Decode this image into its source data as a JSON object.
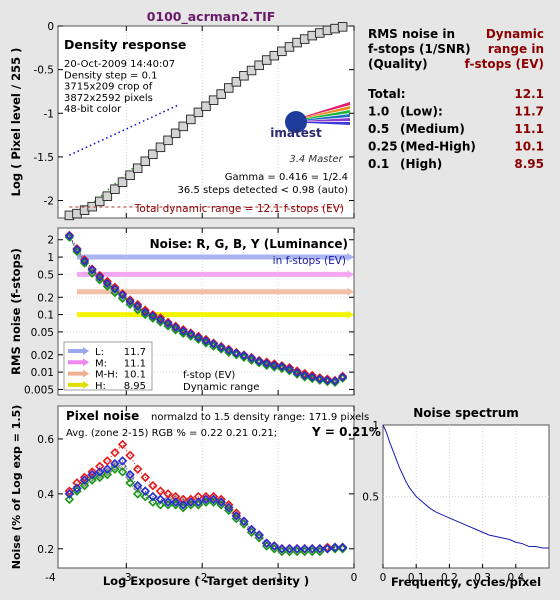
{
  "title": "0100_acrman2.TIF",
  "colors": {
    "title": "#6a1a6a",
    "dark_red": "#8b0000",
    "lum": "#1f2a9f",
    "red": "#e61919",
    "green": "#199619",
    "blue": "#2a2ad2",
    "gray": "#9a9a9a"
  },
  "rms_table": {
    "header_left": [
      "RMS noise in",
      "f-stops (1/SNR)",
      "(Quality)"
    ],
    "header_right": [
      "Dynamic",
      "range in",
      "f-stops (EV)"
    ],
    "rows": [
      {
        "label": "Total:",
        "quality": "",
        "value": "12.1"
      },
      {
        "label": "1.0",
        "quality": "(Low):",
        "value": "11.7"
      },
      {
        "label": "0.5",
        "quality": "(Medium)",
        "value": "11.1"
      },
      {
        "label": "0.25",
        "quality": "(Med-High)",
        "value": "10.1"
      },
      {
        "label": "0.1",
        "quality": "(High)",
        "value": "8.95"
      }
    ]
  },
  "chart_data": [
    {
      "type": "line",
      "name": "density-response",
      "title": "Density response",
      "info_lines": [
        "20-Oct-2009 14:40:07",
        "Density step = 0.1",
        "3715x209 crop of",
        "3872x2592 pixels",
        "48-bit color"
      ],
      "logo_text": "imatest",
      "logo_sub": "3.4  Master",
      "gamma_text": "Gamma = 0.416 = 1/2.4",
      "steps_text": "36.5 steps detected < 0.98 (auto)",
      "dr_text": "Total dynamic range = 12.1 f-stops (EV)",
      "ylabel": "Log ( Pixel level / 255 )",
      "xlim": [
        -3.9,
        0
      ],
      "ylim": [
        -2.2,
        0
      ],
      "yticks": [
        0,
        -0.5,
        -1,
        -1.5,
        -2
      ],
      "ytick_labels": [
        "0",
        "-0.5",
        "-1",
        "-1.5",
        "-2"
      ],
      "x": [
        -3.75,
        -3.65,
        -3.55,
        -3.45,
        -3.35,
        -3.25,
        -3.15,
        -3.05,
        -2.95,
        -2.85,
        -2.75,
        -2.65,
        -2.55,
        -2.45,
        -2.35,
        -2.25,
        -2.15,
        -2.05,
        -1.95,
        -1.85,
        -1.75,
        -1.65,
        -1.55,
        -1.45,
        -1.35,
        -1.25,
        -1.15,
        -1.05,
        -0.95,
        -0.85,
        -0.75,
        -0.65,
        -0.55,
        -0.45,
        -0.35,
        -0.25,
        -0.15
      ],
      "y": [
        -2.17,
        -2.15,
        -2.11,
        -2.07,
        -2.01,
        -1.95,
        -1.87,
        -1.79,
        -1.71,
        -1.63,
        -1.55,
        -1.47,
        -1.39,
        -1.31,
        -1.23,
        -1.15,
        -1.07,
        -0.99,
        -0.92,
        -0.85,
        -0.78,
        -0.71,
        -0.64,
        -0.57,
        -0.51,
        -0.45,
        -0.39,
        -0.34,
        -0.29,
        -0.24,
        -0.19,
        -0.15,
        -0.11,
        -0.08,
        -0.05,
        -0.03,
        -0.01
      ],
      "fit_line": {
        "x": [
          -3.75,
          -2.3
        ],
        "y": [
          -1.48,
          -0.9
        ]
      },
      "green_line": {
        "x": [
          -3.6,
          -2.9
        ],
        "y": [
          -2.15,
          -1.62
        ]
      }
    },
    {
      "type": "line",
      "name": "rms-noise",
      "title": "Noise: R, G, B, Y (Luminance)",
      "subtitle": "in f-stops (EV)",
      "ylabel": "RMS noise (f-stops)",
      "ylog": true,
      "xlim": [
        -3.9,
        0
      ],
      "ylim": [
        0.004,
        3.2
      ],
      "yticks": [
        2,
        1,
        0.5,
        0.2,
        0.1,
        0.05,
        0.02,
        0.01,
        0.005
      ],
      "ytick_labels": [
        "2",
        "1",
        "0.5",
        "0.2",
        "0.1",
        "0.05",
        "0.02",
        "0.01",
        "0.005"
      ],
      "dr_bars": [
        {
          "value": 1.0,
          "x_start": -3.65,
          "x_end": -0.05,
          "color": "#aab4ee"
        },
        {
          "value": 0.5,
          "x_start": -3.65,
          "x_end": -0.05,
          "color": "#f4a8f4"
        },
        {
          "value": 0.25,
          "x_start": -3.65,
          "x_end": -0.05,
          "color": "#f2c0a8"
        },
        {
          "value": 0.1,
          "x_start": -3.65,
          "x_end": -0.05,
          "color": "#f4f400"
        }
      ],
      "legend": [
        {
          "label": "L:",
          "value": "11.7",
          "color": "#9aa6ee"
        },
        {
          "label": "M:",
          "value": "11.1",
          "color": "#ee88ee"
        },
        {
          "label": "M-H:",
          "value": "10.1",
          "color": "#f0b090"
        },
        {
          "label": "H:",
          "value": "8.95",
          "color": "#e0e000"
        }
      ],
      "legend_notes": [
        "f-stop (EV)",
        "Dynamic range"
      ],
      "x": [
        -3.75,
        -3.65,
        -3.55,
        -3.45,
        -3.35,
        -3.25,
        -3.15,
        -3.05,
        -2.95,
        -2.85,
        -2.75,
        -2.65,
        -2.55,
        -2.45,
        -2.35,
        -2.25,
        -2.15,
        -2.05,
        -1.95,
        -1.85,
        -1.75,
        -1.65,
        -1.55,
        -1.45,
        -1.35,
        -1.25,
        -1.15,
        -1.05,
        -0.95,
        -0.85,
        -0.75,
        -0.65,
        -0.55,
        -0.45,
        -0.35,
        -0.25,
        -0.15
      ],
      "series": [
        {
          "color": "#9a9a9a",
          "values": [
            2.3,
            1.3,
            0.8,
            0.55,
            0.42,
            0.33,
            0.26,
            0.2,
            0.16,
            0.13,
            0.105,
            0.09,
            0.078,
            0.066,
            0.057,
            0.05,
            0.044,
            0.039,
            0.034,
            0.03,
            0.026,
            0.023,
            0.021,
            0.019,
            0.017,
            0.015,
            0.014,
            0.013,
            0.012,
            0.011,
            0.0095,
            0.0085,
            0.008,
            0.0075,
            0.007,
            0.0068,
            0.008
          ]
        },
        {
          "color": "#e61919",
          "values": [
            2.4,
            1.4,
            0.9,
            0.62,
            0.48,
            0.38,
            0.3,
            0.23,
            0.18,
            0.15,
            0.12,
            0.1,
            0.088,
            0.074,
            0.063,
            0.055,
            0.048,
            0.042,
            0.037,
            0.032,
            0.028,
            0.025,
            0.022,
            0.02,
            0.018,
            0.016,
            0.015,
            0.014,
            0.013,
            0.012,
            0.0105,
            0.0095,
            0.0088,
            0.008,
            0.0076,
            0.0072,
            0.0085
          ]
        },
        {
          "color": "#199619",
          "values": [
            2.2,
            1.25,
            0.78,
            0.52,
            0.4,
            0.31,
            0.24,
            0.19,
            0.15,
            0.12,
            0.1,
            0.086,
            0.074,
            0.063,
            0.054,
            0.047,
            0.042,
            0.037,
            0.032,
            0.028,
            0.025,
            0.022,
            0.02,
            0.018,
            0.016,
            0.0145,
            0.013,
            0.0122,
            0.0115,
            0.0105,
            0.0092,
            0.0082,
            0.0077,
            0.0072,
            0.0068,
            0.0066,
            0.0078
          ]
        },
        {
          "color": "#2a2ad2",
          "values": [
            2.35,
            1.35,
            0.85,
            0.6,
            0.45,
            0.35,
            0.28,
            0.22,
            0.17,
            0.14,
            0.11,
            0.095,
            0.082,
            0.07,
            0.06,
            0.052,
            0.046,
            0.04,
            0.035,
            0.031,
            0.027,
            0.024,
            0.0215,
            0.0195,
            0.0175,
            0.0155,
            0.0142,
            0.0132,
            0.0125,
            0.0112,
            0.0098,
            0.0088,
            0.0082,
            0.0076,
            0.0072,
            0.007,
            0.0082
          ]
        }
      ]
    },
    {
      "type": "line",
      "name": "pixel-noise",
      "title": "Pixel noise",
      "note": "normalzd to 1.5 density range: 171.9 pixels",
      "avg_text": "Avg. (zone 2-15) RGB % = 0.22  0.21  0.21;",
      "y_text": "Y = 0.21%",
      "xlabel": "Log Exposure ( -Target density )",
      "ylabel": "Noise (% of Log exp = 1.5)",
      "xlim": [
        -3.9,
        0
      ],
      "ylim": [
        0.13,
        0.72
      ],
      "xticks": [
        -4,
        -3,
        -2,
        -1,
        0
      ],
      "xtick_labels": [
        "-4",
        "-3",
        "-2",
        "-1",
        "0"
      ],
      "yticks": [
        0.2,
        0.4,
        0.6
      ],
      "ytick_labels": [
        "0.2",
        "0.4",
        "0.6"
      ],
      "x": [
        -3.75,
        -3.65,
        -3.55,
        -3.45,
        -3.35,
        -3.25,
        -3.15,
        -3.05,
        -2.95,
        -2.85,
        -2.75,
        -2.65,
        -2.55,
        -2.45,
        -2.35,
        -2.25,
        -2.15,
        -2.05,
        -1.95,
        -1.85,
        -1.75,
        -1.65,
        -1.55,
        -1.45,
        -1.35,
        -1.25,
        -1.15,
        -1.05,
        -0.95,
        -0.85,
        -0.75,
        -0.65,
        -0.55,
        -0.45,
        -0.35,
        -0.25,
        -0.15
      ],
      "series": [
        {
          "color": "#9a9a9a",
          "values": [
            0.4,
            0.42,
            0.44,
            0.46,
            0.47,
            0.48,
            0.5,
            0.5,
            0.46,
            0.42,
            0.41,
            0.39,
            0.38,
            0.38,
            0.38,
            0.37,
            0.37,
            0.37,
            0.38,
            0.38,
            0.37,
            0.35,
            0.32,
            0.3,
            0.27,
            0.25,
            0.22,
            0.21,
            0.2,
            0.2,
            0.2,
            0.2,
            0.2,
            0.2,
            0.205,
            0.205,
            0.205
          ]
        },
        {
          "color": "#e61919",
          "values": [
            0.41,
            0.44,
            0.46,
            0.48,
            0.5,
            0.52,
            0.55,
            0.58,
            0.54,
            0.49,
            0.46,
            0.43,
            0.41,
            0.4,
            0.39,
            0.38,
            0.38,
            0.39,
            0.39,
            0.39,
            0.38,
            0.36,
            0.33,
            0.3,
            0.27,
            0.25,
            0.22,
            0.21,
            0.2,
            0.2,
            0.2,
            0.2,
            0.2,
            0.2,
            0.205,
            0.205,
            0.205
          ]
        },
        {
          "color": "#199619",
          "values": [
            0.38,
            0.41,
            0.43,
            0.45,
            0.46,
            0.47,
            0.49,
            0.48,
            0.44,
            0.4,
            0.39,
            0.37,
            0.36,
            0.36,
            0.36,
            0.35,
            0.36,
            0.36,
            0.37,
            0.37,
            0.36,
            0.34,
            0.31,
            0.29,
            0.26,
            0.24,
            0.21,
            0.2,
            0.19,
            0.19,
            0.19,
            0.19,
            0.19,
            0.19,
            0.2,
            0.2,
            0.2
          ]
        },
        {
          "color": "#2a2ad2",
          "values": [
            0.4,
            0.42,
            0.45,
            0.47,
            0.48,
            0.49,
            0.51,
            0.52,
            0.47,
            0.43,
            0.41,
            0.39,
            0.38,
            0.37,
            0.37,
            0.36,
            0.37,
            0.37,
            0.38,
            0.38,
            0.37,
            0.35,
            0.32,
            0.3,
            0.27,
            0.25,
            0.22,
            0.21,
            0.2,
            0.2,
            0.2,
            0.2,
            0.2,
            0.2,
            0.2,
            0.205,
            0.205
          ]
        }
      ]
    },
    {
      "type": "line",
      "name": "noise-spectrum",
      "title": "Noise spectrum",
      "xlabel": "Frequency, cycles/pixel",
      "xlim": [
        0,
        0.5
      ],
      "ylim": [
        0,
        1
      ],
      "xticks": [
        0,
        0.1,
        0.2,
        0.3,
        0.4
      ],
      "xtick_labels": [
        "0",
        "0.1",
        "0.2",
        "0.3",
        "0.4"
      ],
      "yticks": [
        1,
        0.5
      ],
      "ytick_labels": [
        "1",
        "0.5"
      ],
      "x": [
        0,
        0.01,
        0.02,
        0.03,
        0.04,
        0.05,
        0.06,
        0.07,
        0.08,
        0.09,
        0.1,
        0.12,
        0.14,
        0.16,
        0.18,
        0.2,
        0.22,
        0.24,
        0.26,
        0.28,
        0.3,
        0.32,
        0.34,
        0.36,
        0.38,
        0.4,
        0.42,
        0.44,
        0.46,
        0.48,
        0.5
      ],
      "values": [
        1.0,
        0.95,
        0.88,
        0.82,
        0.76,
        0.7,
        0.65,
        0.6,
        0.56,
        0.53,
        0.5,
        0.46,
        0.42,
        0.39,
        0.37,
        0.35,
        0.33,
        0.31,
        0.29,
        0.27,
        0.25,
        0.23,
        0.22,
        0.21,
        0.2,
        0.18,
        0.17,
        0.15,
        0.15,
        0.14,
        0.14
      ]
    }
  ]
}
